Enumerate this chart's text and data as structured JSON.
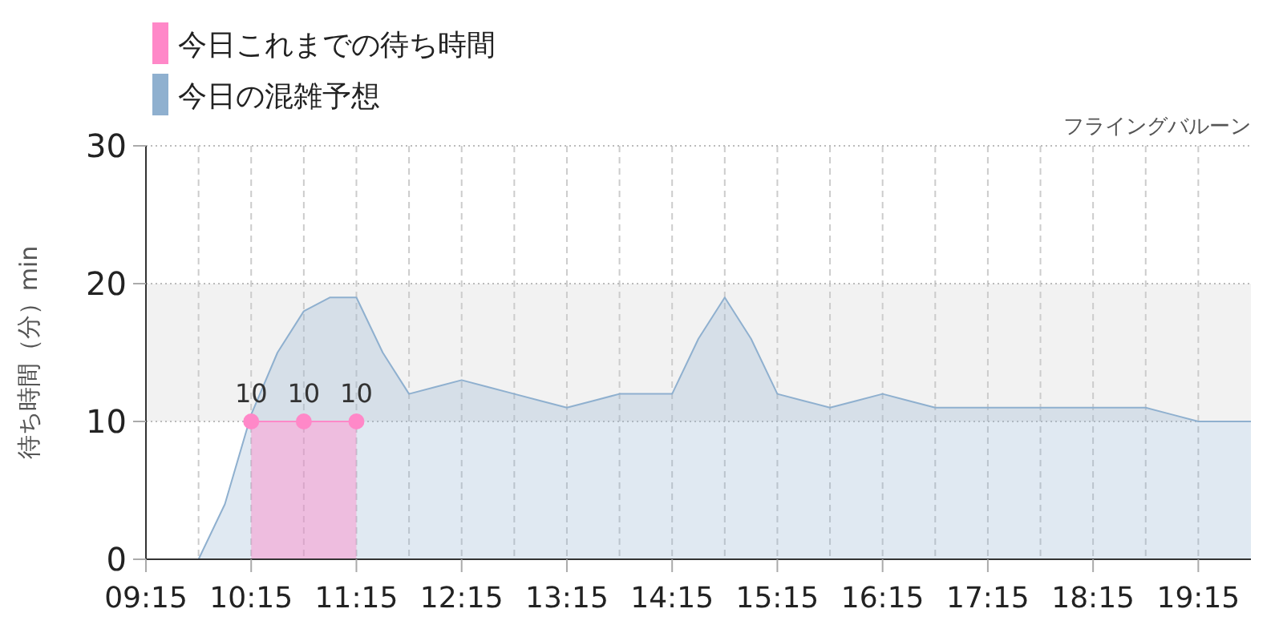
{
  "chart_data": {
    "type": "area",
    "title": "フライングバルーン",
    "ylabel": "待ち時間（分）min",
    "xlim": [
      9.25,
      19.75
    ],
    "xticks": [
      {
        "value": 9.25,
        "label": "09:15"
      },
      {
        "value": 9.75,
        "label": null
      },
      {
        "value": 10.25,
        "label": "10:15"
      },
      {
        "value": 10.75,
        "label": null
      },
      {
        "value": 11.25,
        "label": "11:15"
      },
      {
        "value": 11.75,
        "label": null
      },
      {
        "value": 12.25,
        "label": "12:15"
      },
      {
        "value": 12.75,
        "label": null
      },
      {
        "value": 13.25,
        "label": "13:15"
      },
      {
        "value": 13.75,
        "label": null
      },
      {
        "value": 14.25,
        "label": "14:15"
      },
      {
        "value": 14.75,
        "label": null
      },
      {
        "value": 15.25,
        "label": "15:15"
      },
      {
        "value": 15.75,
        "label": null
      },
      {
        "value": 16.25,
        "label": "16:15"
      },
      {
        "value": 16.75,
        "label": null
      },
      {
        "value": 17.25,
        "label": "17:15"
      },
      {
        "value": 17.75,
        "label": null
      },
      {
        "value": 18.25,
        "label": "18:15"
      },
      {
        "value": 18.75,
        "label": null
      },
      {
        "value": 19.25,
        "label": "19:15"
      }
    ],
    "ylim": [
      0,
      30
    ],
    "yticks": [
      0,
      10,
      20,
      30
    ],
    "grid": true,
    "legend": "top left",
    "bands": [
      {
        "axis": "y",
        "from": 10,
        "to": 20,
        "color": "#f2f2f2"
      }
    ],
    "series": [
      {
        "name": "今日の混雑予想",
        "color": "#8fb0cf",
        "marker": "none",
        "x": [
          9.25,
          9.5,
          9.75,
          10.0,
          10.25,
          10.5,
          10.75,
          11.0,
          11.25,
          11.5,
          11.75,
          12.0,
          12.25,
          12.5,
          12.75,
          13.0,
          13.25,
          13.5,
          13.75,
          14.0,
          14.25,
          14.5,
          14.75,
          15.0,
          15.25,
          15.5,
          15.75,
          16.0,
          16.25,
          16.5,
          16.75,
          17.0,
          17.25,
          17.5,
          17.75,
          18.0,
          18.25,
          18.5,
          18.75,
          19.0,
          19.25,
          19.5,
          19.75
        ],
        "values": [
          0,
          0,
          0,
          4,
          10.5,
          15,
          18,
          19,
          19,
          15,
          12,
          12.5,
          13,
          12.5,
          12,
          11.5,
          11,
          11.5,
          12,
          12,
          12,
          16,
          19,
          16,
          12,
          11.5,
          11,
          11.5,
          12,
          11.5,
          11,
          11,
          11,
          11,
          11,
          11,
          11,
          11,
          11,
          10.5,
          10,
          10,
          10
        ]
      },
      {
        "name": "今日これまでの待ち時間",
        "color": "#ff88c8",
        "marker": "circle",
        "data_labels": true,
        "x": [
          10.25,
          10.75,
          11.25
        ],
        "values": [
          10,
          10,
          10
        ]
      }
    ]
  }
}
